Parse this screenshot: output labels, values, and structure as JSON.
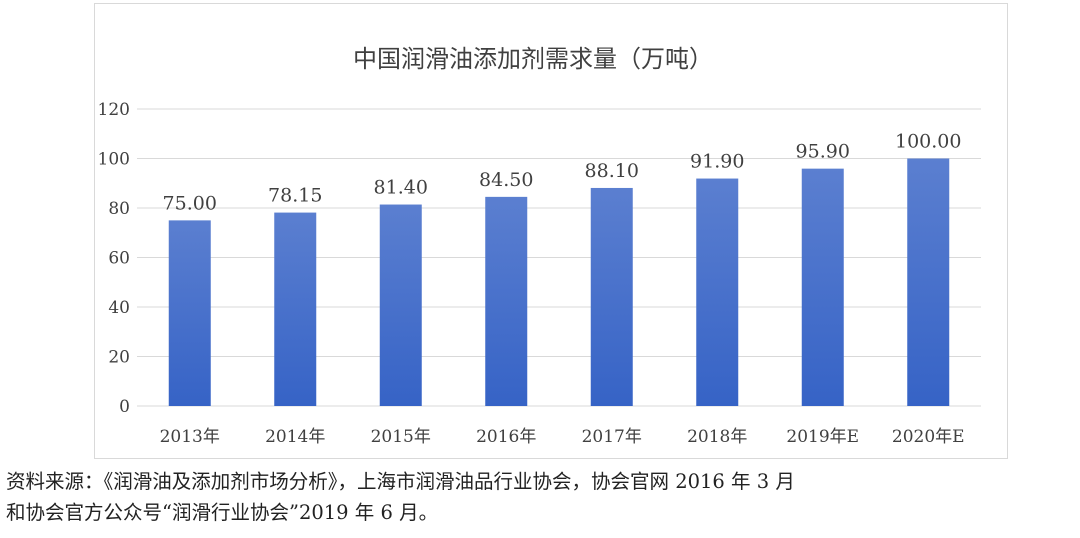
{
  "chart_data": {
    "type": "bar",
    "title": "中国润滑油添加剂需求量（万吨）",
    "categories": [
      "2013年",
      "2014年",
      "2015年",
      "2016年",
      "2017年",
      "2018年",
      "2019年E",
      "2020年E"
    ],
    "values": [
      75.0,
      78.15,
      81.4,
      84.5,
      88.1,
      91.9,
      95.9,
      100.0
    ],
    "value_labels": [
      "75.00",
      "78.15",
      "81.40",
      "84.50",
      "88.10",
      "91.90",
      "95.90",
      "100.00"
    ],
    "yticks": [
      0,
      20,
      40,
      60,
      80,
      100,
      120
    ],
    "ylim": [
      0,
      120
    ],
    "xlabel": "",
    "ylabel": "",
    "grid": true,
    "bar_color_top": "#5b7fd0",
    "bar_color_bottom": "#3663c6"
  },
  "source": {
    "line1": "资料来源：《润滑油及添加剂市场分析》，上海市润滑油品行业协会，协会官网 2016 年 3 月",
    "line2": "和协会官方公众号“润滑行业协会”2019 年 6 月。"
  }
}
